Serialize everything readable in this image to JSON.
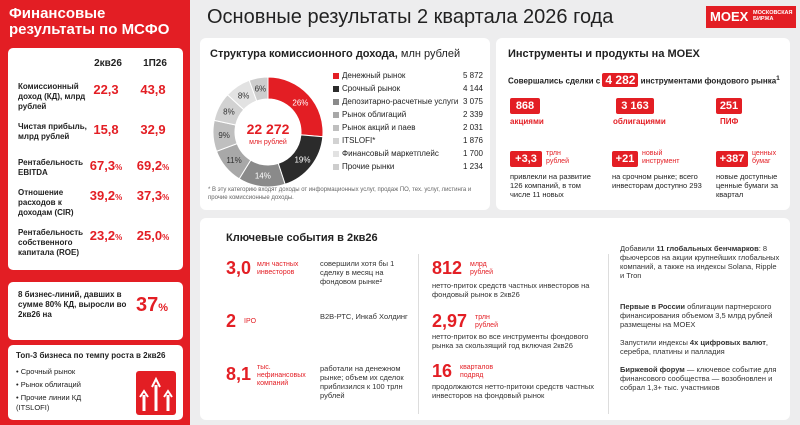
{
  "sidebar": {
    "title": "Финансовые результаты по МСФО",
    "col1": "2кв26",
    "col2": "1П26",
    "metrics": [
      {
        "label": "Комиссионный доход (КД), млрд рублей",
        "v1": "22,3",
        "v2": "43,8",
        "unit": ""
      },
      {
        "label": "Чистая прибыль, млрд рублей",
        "v1": "15,8",
        "v2": "32,9",
        "unit": ""
      },
      {
        "label": "Рентабельность EBITDA",
        "v1": "67,3",
        "v2": "69,2",
        "unit": "%"
      },
      {
        "label": "Отношение расходов к доходам (CIR)",
        "v1": "39,2",
        "v2": "37,3",
        "unit": "%"
      },
      {
        "label": "Рентабельность собственного капитала (ROE)",
        "v1": "23,2",
        "v2": "25,0",
        "unit": "%"
      }
    ],
    "mid_text": "8 бизнес-линий, давших в сумме 80% КД, выросли во 2кв26 на",
    "mid_value": "37",
    "mid_unit": "%",
    "top3_title": "Топ-3 бизнеса по темпу роста в 2кв26",
    "top3": [
      "Срочный рынок",
      "Рынок облигаций",
      "Прочие линии КД (ITSLOFI)"
    ]
  },
  "header": {
    "title": "Основные результаты 2 квартала 2026 года",
    "logo": "MOEX",
    "logo_sub1": "МОСКОВСКАЯ",
    "logo_sub2": "БИРЖА"
  },
  "chart_data": {
    "type": "pie",
    "title": "Структура комиссионного дохода,",
    "title_unit": "млн рублей",
    "center_value": "22 272",
    "center_label": "млн рублей",
    "categories": [
      "Денежный рынок",
      "Срочный рынок",
      "Депозитарно-расчетные услуги",
      "Рынок облигаций",
      "Рынок акций и паев",
      "ITSLOFI*",
      "Финансовый маркетплейс",
      "Прочие рынки"
    ],
    "values": [
      5872,
      4144,
      3075,
      2339,
      2031,
      1876,
      1700,
      1234
    ],
    "value_labels": [
      "5 872",
      "4 144",
      "3 075",
      "2 339",
      "2 031",
      "1 876",
      "1 700",
      "1 234"
    ],
    "percent_labels": [
      "26%",
      "19%",
      "14%",
      "11%",
      "9%",
      "8%",
      "8%",
      "6%"
    ],
    "colors": [
      "#e31e24",
      "#2b2b2b",
      "#8a8a8a",
      "#a8a8a8",
      "#bfbfbf",
      "#d2d2d2",
      "#e2e2e2",
      "#cdcdcd"
    ],
    "footnote": "* В эту категорию входят доходы от информационных услуг, продаж ПО, тех. услуг, листинга и прочие комиссионные доходы."
  },
  "instruments": {
    "title": "Инструменты и продукты на MOEX",
    "deals_pre": "Совершались сделки с",
    "deals_value": "4 282",
    "deals_post": "инструментами фондового рынка",
    "deals_sup": "1",
    "stats": [
      {
        "value": "868",
        "label": "акциями"
      },
      {
        "value": "3 163",
        "label": "облигациями"
      },
      {
        "value": "251",
        "label": "ПИФ"
      }
    ],
    "highlights": [
      {
        "value": "+3,3",
        "unit": "трлн рублей",
        "text": "привлекли на развитие 126 компаний, в том числе 11 новых"
      },
      {
        "value": "+21",
        "unit": "новый инструмент",
        "text": "на срочном рынке; всего инвесторам доступно 293"
      },
      {
        "value": "+387",
        "unit": "ценных бумаг",
        "text": "новые доступные ценные бумаги за квартал"
      }
    ]
  },
  "events": {
    "title": "Ключевые события в 2кв26",
    "left": [
      {
        "value": "3,0",
        "unit": "млн частных инвесторов",
        "text": "совершили хотя бы 1 сделку в месяц на фондовом рынке²"
      },
      {
        "value": "2",
        "unit": "IPO",
        "text": "B2B-РТС, Инкаб Холдинг"
      },
      {
        "value": "8,1",
        "unit": "тыс. нефинансовых компаний",
        "text": "работали на денежном рынке; объем их сделок приблизился к 100 трлн рублей"
      }
    ],
    "mid": [
      {
        "value": "812",
        "unit": "млрд рублей",
        "text": "нетто-приток средств частных инвесторов на фондовый рынок в 2кв26"
      },
      {
        "value": "2,97",
        "unit": "трлн рублей",
        "text": "нетто-приток во все инструменты фондового рынка за скользящий год включая 2кв26"
      },
      {
        "value": "16",
        "unit": "кварталов подряд",
        "text": "продолжаются нетто-притоки средств частных инвесторов на фондовый рынок"
      }
    ],
    "right": [
      {
        "a": "Добавили ",
        "b": "11 глобальных бенчмарков",
        "c": ": 8 фьючерсов на акции крупнейших глобальных компаний, а также на индексы Solana, Ripple и Tron"
      },
      {
        "a": "",
        "b": "Первые в России",
        "c": " облигации партнерского финансирования объемом 3,5 млрд рублей размещены на MOEX"
      },
      {
        "a": "Запустили индексы ",
        "b": "4х цифровых валют",
        "c": ", серебра, платины и палладия"
      },
      {
        "a": "",
        "b": "Биржевой форум",
        "c": " — ключевое событие для финансового сообщества — возобновлен и собрал 1,3+ тыс. участников"
      }
    ]
  }
}
